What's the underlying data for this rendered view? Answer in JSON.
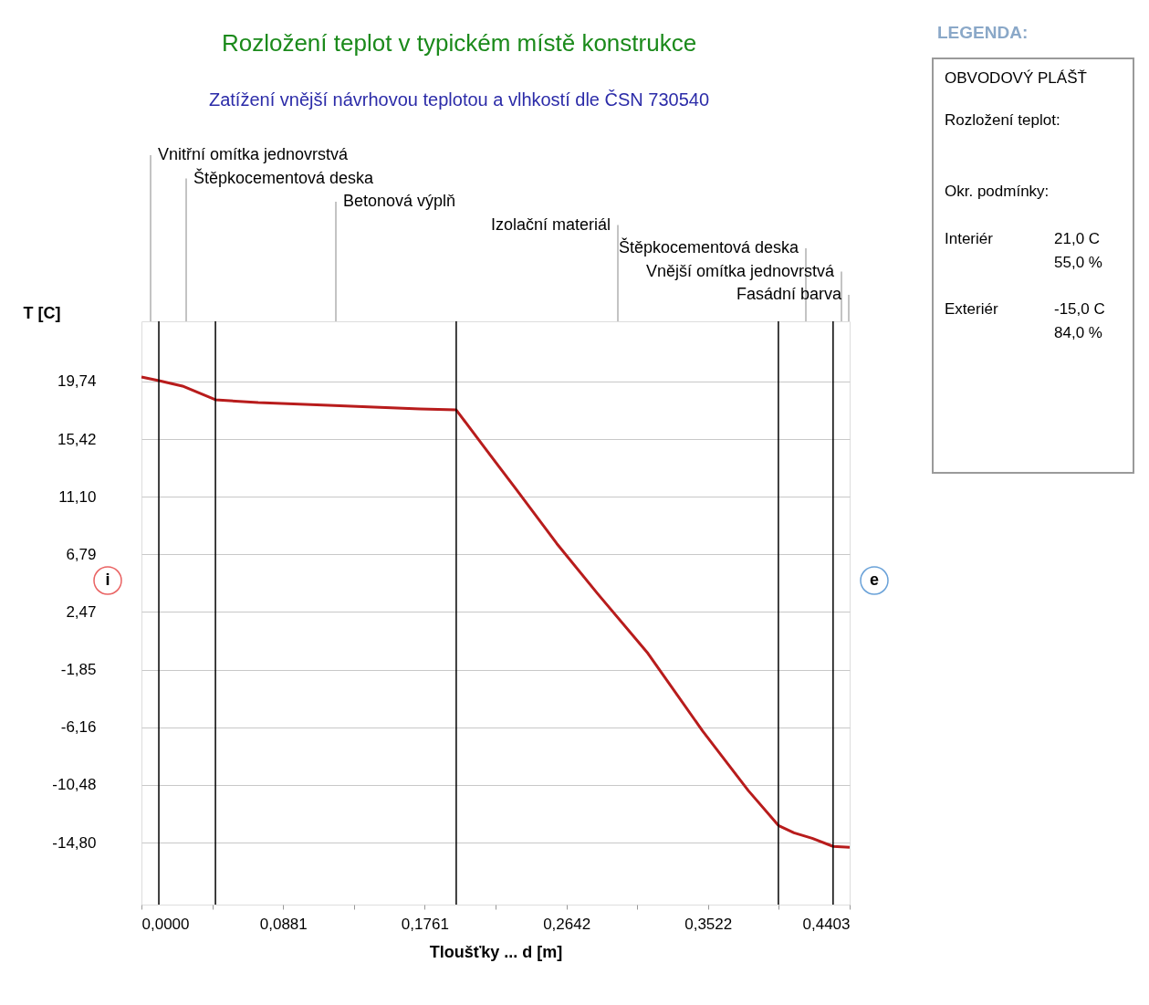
{
  "chart_data": {
    "type": "line",
    "title": "Rozložení teplot v typickém místě konstrukce",
    "subtitle": "Zatížení vnější návrhovou teplotou a vlhkostí dle ČSN 730540",
    "xlabel": "Tloušťky ... d [m]",
    "ylabel": "T [C]",
    "x": [
      0,
      0.0108,
      0.0255,
      0.046,
      0.0726,
      0.1163,
      0.1731,
      0.1957,
      0.2128,
      0.2326,
      0.2582,
      0.2837,
      0.3149,
      0.3489,
      0.3773,
      0.396,
      0.4057,
      0.417,
      0.43,
      0.4403
    ],
    "series": [
      {
        "color": "#b81c1c",
        "values": [
          20.08,
          19.81,
          19.4,
          18.37,
          18.16,
          17.96,
          17.68,
          17.61,
          14.87,
          11.72,
          7.6,
          3.83,
          -0.63,
          -6.45,
          -10.91,
          -13.52,
          -14.07,
          -14.48,
          -15.09,
          -15.16
        ]
      }
    ],
    "xlim": [
      0,
      0.4403
    ],
    "ylim": [
      -19.45,
      24.25
    ],
    "xticks": [
      {
        "value": 0,
        "label": "0,0000"
      },
      {
        "value": 0.04405,
        "label": null
      },
      {
        "value": 0.0881,
        "label": "0,0881"
      },
      {
        "value": 0.1321,
        "label": null
      },
      {
        "value": 0.1761,
        "label": "0,1761"
      },
      {
        "value": 0.22015,
        "label": null
      },
      {
        "value": 0.2642,
        "label": "0,2642"
      },
      {
        "value": 0.3082,
        "label": null
      },
      {
        "value": 0.3522,
        "label": "0,3522"
      },
      {
        "value": 0.39625,
        "label": null
      },
      {
        "value": 0.4403,
        "label": "0,4403"
      }
    ],
    "yticks": [
      {
        "value": 19.74,
        "label": "19,74"
      },
      {
        "value": 15.42,
        "label": "15,42"
      },
      {
        "value": 11.1,
        "label": "11,10"
      },
      {
        "value": 6.79,
        "label": "6,79"
      },
      {
        "value": 2.47,
        "label": "2,47"
      },
      {
        "value": -1.85,
        "label": "-1,85"
      },
      {
        "value": -6.16,
        "label": "-6,16"
      },
      {
        "value": -10.48,
        "label": "-10,48"
      },
      {
        "value": -14.8,
        "label": "-14,80"
      }
    ],
    "grid": "y",
    "legend": false,
    "marker": "none",
    "line_style": "solid",
    "ref_lines": [
      {
        "axis": "x",
        "value": 0.0108,
        "color": "#000000"
      },
      {
        "axis": "x",
        "value": 0.046,
        "color": "#000000"
      },
      {
        "axis": "x",
        "value": 0.1957,
        "color": "#000000"
      },
      {
        "axis": "x",
        "value": 0.396,
        "color": "#000000"
      },
      {
        "axis": "x",
        "value": 0.43,
        "color": "#000000"
      }
    ],
    "annotations": [
      "Vnitřní omítka jednovrstvá",
      "Štěpkocementová deska",
      "Betonová výplň",
      "Izolační materiál",
      "Štěpkocementová deska",
      "Vnější omítka jednovrstvá",
      "Fasádní barva",
      "LEGENDA:",
      "OBVODOVÝ PLÁŠŤ",
      "Rozložení teplot:",
      "Okr. podmínky:",
      "Interiér",
      "21,0 C",
      "55,0 %",
      "Exteriér",
      "-15,0 C",
      "84,0 %",
      "i",
      "e"
    ]
  }
}
